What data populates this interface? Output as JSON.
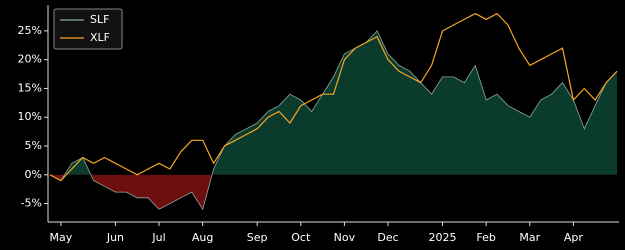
{
  "chart_data": {
    "type": "line",
    "categories": [
      null,
      "May",
      null,
      null,
      null,
      null,
      "Jun",
      null,
      null,
      null,
      "Jul",
      null,
      null,
      null,
      "Aug",
      null,
      null,
      null,
      null,
      "Sep",
      null,
      null,
      null,
      "Oct",
      null,
      null,
      null,
      "Nov",
      null,
      null,
      null,
      "Dec",
      null,
      null,
      null,
      null,
      "2025",
      null,
      null,
      null,
      "Feb",
      null,
      null,
      null,
      "Mar",
      null,
      null,
      null,
      "Apr",
      null,
      null,
      null,
      null
    ],
    "series": [
      {
        "name": "SLF",
        "color": "#8fa8a0",
        "fill": "#0a3b2c",
        "negative_fill": "#6e0f0f",
        "area": true,
        "values": [
          0,
          -1,
          2,
          3,
          -1,
          -2,
          -3,
          -3,
          -4,
          -4,
          -6,
          -5,
          -4,
          -3,
          -6,
          1,
          5,
          7,
          8,
          9,
          11,
          12,
          14,
          13,
          11,
          14,
          17,
          21,
          22,
          23,
          25,
          21,
          19,
          18,
          16,
          14,
          17,
          17,
          16,
          19,
          13,
          14,
          12,
          11,
          10,
          13,
          14,
          16,
          13,
          8,
          12,
          16,
          18
        ]
      },
      {
        "name": "XLF",
        "color": "#f5a623",
        "values": [
          0,
          -1,
          1,
          3,
          2,
          3,
          2,
          1,
          0,
          1,
          2,
          1,
          4,
          6,
          6,
          2,
          5,
          6,
          7,
          8,
          10,
          11,
          9,
          12,
          13,
          14,
          14,
          20,
          22,
          23,
          24,
          20,
          18,
          17,
          16,
          19,
          25,
          26,
          27,
          28,
          27,
          28,
          26,
          22,
          19,
          20,
          21,
          22,
          13,
          15,
          13,
          16,
          18
        ]
      }
    ],
    "ylim": [
      -8.2,
      29.5
    ],
    "yticks": [
      {
        "value": -5,
        "label": "-5%"
      },
      {
        "value": 0,
        "label": "0%"
      },
      {
        "value": 5,
        "label": "5%"
      },
      {
        "value": 10,
        "label": "10%"
      },
      {
        "value": 15,
        "label": "15%"
      },
      {
        "value": 20,
        "label": "20%"
      },
      {
        "value": 25,
        "label": "25%"
      }
    ],
    "legend": "upper left"
  }
}
